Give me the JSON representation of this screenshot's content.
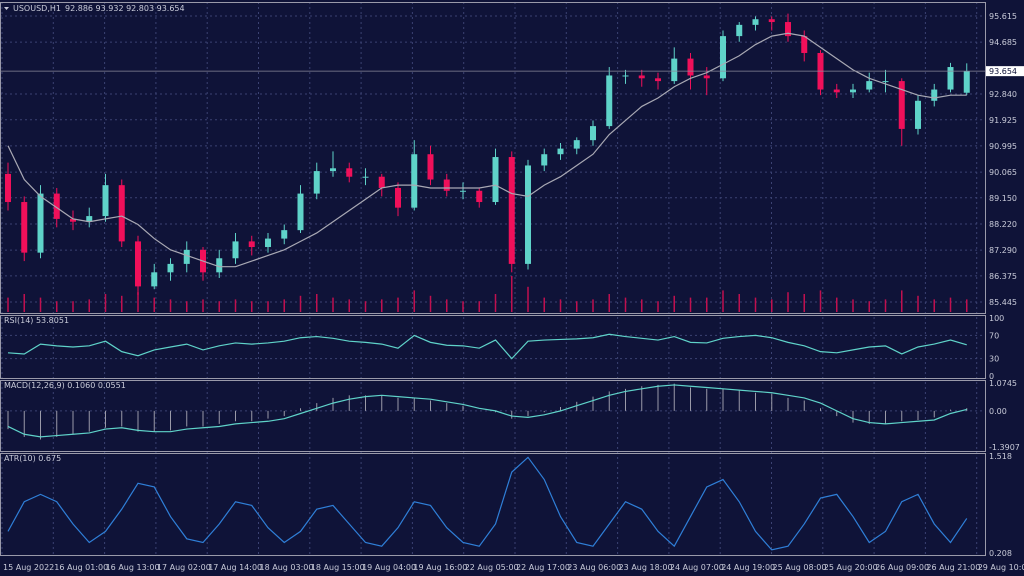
{
  "header": {
    "symbol": "USOUSD,H1",
    "ohlc": "92.886 93.932 92.803 93.654"
  },
  "colors": {
    "background": "#0f1338",
    "bull": "#5fd3c9",
    "bear": "#f0105a",
    "ma": "#a9a9b4",
    "grid": "#3b4272",
    "rsi": "#5fd3c9",
    "macd_line": "#5fd3c9",
    "macd_hist": "#9a9aa8",
    "atr": "#2f7fd8",
    "volume": "#c0104f"
  },
  "chart_data": [
    {
      "type": "candlestick",
      "title": "USOUSD,H1",
      "ylim": [
        85.2,
        96.0
      ],
      "y_ticks": [
        "95.615",
        "94.685",
        "92.840",
        "91.925",
        "90.995",
        "90.065",
        "89.150",
        "88.220",
        "87.290",
        "86.375",
        "85.445"
      ],
      "y_tick_values": [
        95.615,
        94.685,
        92.84,
        91.925,
        90.995,
        90.065,
        89.15,
        88.22,
        87.29,
        86.375,
        85.445
      ],
      "last_price": "93.654",
      "candles": [
        [
          90.0,
          90.4,
          88.7,
          89.0
        ],
        [
          89.0,
          89.2,
          86.9,
          87.2
        ],
        [
          87.2,
          89.6,
          87.0,
          89.3
        ],
        [
          89.3,
          89.5,
          88.1,
          88.4
        ],
        [
          88.4,
          88.7,
          88.0,
          88.3
        ],
        [
          88.3,
          88.8,
          88.1,
          88.5
        ],
        [
          88.5,
          90.0,
          88.3,
          89.6
        ],
        [
          89.6,
          89.8,
          87.4,
          87.6
        ],
        [
          87.6,
          87.8,
          85.7,
          86.0
        ],
        [
          86.0,
          86.8,
          85.9,
          86.5
        ],
        [
          86.5,
          87.0,
          86.2,
          86.8
        ],
        [
          86.8,
          87.6,
          86.5,
          87.3
        ],
        [
          87.3,
          87.4,
          86.2,
          86.5
        ],
        [
          86.5,
          87.3,
          86.3,
          87.0
        ],
        [
          87.0,
          87.9,
          86.8,
          87.6
        ],
        [
          87.6,
          87.8,
          87.1,
          87.4
        ],
        [
          87.4,
          87.9,
          87.2,
          87.7
        ],
        [
          87.7,
          88.2,
          87.5,
          88.0
        ],
        [
          88.0,
          89.6,
          87.9,
          89.3
        ],
        [
          89.3,
          90.4,
          89.1,
          90.1
        ],
        [
          90.1,
          90.8,
          89.9,
          90.2
        ],
        [
          90.2,
          90.4,
          89.7,
          89.9
        ],
        [
          89.9,
          90.2,
          89.6,
          89.9
        ],
        [
          89.9,
          90.0,
          89.2,
          89.5
        ],
        [
          89.5,
          89.7,
          88.5,
          88.8
        ],
        [
          88.8,
          91.2,
          88.7,
          90.7
        ],
        [
          90.7,
          91.0,
          89.6,
          89.8
        ],
        [
          89.8,
          90.0,
          89.2,
          89.4
        ],
        [
          89.4,
          89.7,
          89.1,
          89.4
        ],
        [
          89.4,
          89.5,
          88.8,
          89.0
        ],
        [
          89.0,
          90.9,
          88.9,
          90.6
        ],
        [
          90.6,
          90.8,
          86.5,
          86.8
        ],
        [
          86.8,
          90.5,
          86.6,
          90.3
        ],
        [
          90.3,
          90.9,
          90.1,
          90.7
        ],
        [
          90.7,
          91.1,
          90.5,
          90.9
        ],
        [
          90.9,
          91.3,
          90.7,
          91.2
        ],
        [
          91.2,
          91.9,
          91.0,
          91.7
        ],
        [
          91.7,
          93.8,
          91.6,
          93.5
        ],
        [
          93.5,
          93.7,
          93.2,
          93.5
        ],
        [
          93.5,
          93.7,
          93.1,
          93.4
        ],
        [
          93.4,
          93.6,
          93.0,
          93.3
        ],
        [
          93.3,
          94.5,
          93.2,
          94.1
        ],
        [
          94.1,
          94.3,
          93.0,
          93.5
        ],
        [
          93.5,
          93.8,
          92.8,
          93.4
        ],
        [
          93.4,
          95.1,
          93.3,
          94.9
        ],
        [
          94.9,
          95.4,
          94.7,
          95.3
        ],
        [
          95.3,
          95.6,
          95.1,
          95.5
        ],
        [
          95.5,
          95.6,
          95.1,
          95.4
        ],
        [
          95.4,
          95.7,
          94.7,
          94.9
        ],
        [
          94.9,
          95.1,
          94.0,
          94.3
        ],
        [
          94.3,
          94.4,
          92.8,
          93.0
        ],
        [
          93.0,
          93.2,
          92.7,
          92.9
        ],
        [
          92.9,
          93.2,
          92.7,
          93.0
        ],
        [
          93.0,
          93.6,
          92.9,
          93.3
        ],
        [
          93.3,
          93.7,
          92.9,
          93.3
        ],
        [
          93.3,
          93.4,
          91.0,
          91.6
        ],
        [
          91.6,
          92.8,
          91.4,
          92.6
        ],
        [
          92.6,
          93.2,
          92.4,
          93.0
        ],
        [
          93.0,
          93.95,
          92.9,
          93.8
        ],
        [
          92.886,
          93.932,
          92.803,
          93.654
        ]
      ],
      "moving_average": [
        91.0,
        89.8,
        89.2,
        88.8,
        88.4,
        88.3,
        88.4,
        88.5,
        88.2,
        87.7,
        87.3,
        87.1,
        86.9,
        86.7,
        86.7,
        86.9,
        87.1,
        87.3,
        87.6,
        87.9,
        88.3,
        88.7,
        89.1,
        89.5,
        89.6,
        89.6,
        89.5,
        89.5,
        89.5,
        89.5,
        89.6,
        89.3,
        89.2,
        89.6,
        89.9,
        90.3,
        90.7,
        91.4,
        91.9,
        92.4,
        92.7,
        93.1,
        93.4,
        93.6,
        93.9,
        94.2,
        94.6,
        94.9,
        95.0,
        94.9,
        94.5,
        94.1,
        93.7,
        93.4,
        93.2,
        93.0,
        92.8,
        92.7,
        92.8,
        92.8
      ],
      "volume_relative": [
        0.4,
        0.5,
        0.4,
        0.3,
        0.3,
        0.35,
        0.5,
        0.45,
        0.55,
        0.4,
        0.35,
        0.3,
        0.35,
        0.3,
        0.35,
        0.3,
        0.3,
        0.35,
        0.45,
        0.5,
        0.4,
        0.35,
        0.3,
        0.35,
        0.4,
        0.6,
        0.45,
        0.35,
        0.3,
        0.3,
        0.5,
        1.0,
        0.7,
        0.4,
        0.35,
        0.3,
        0.35,
        0.5,
        0.4,
        0.35,
        0.3,
        0.45,
        0.4,
        0.4,
        0.6,
        0.5,
        0.4,
        0.35,
        0.55,
        0.5,
        0.6,
        0.4,
        0.35,
        0.3,
        0.35,
        0.6,
        0.45,
        0.35,
        0.4,
        0.35
      ]
    },
    {
      "type": "line",
      "title": "RSI(14) 53.8051",
      "ylim": [
        0,
        100
      ],
      "y_ticks": [
        "100",
        "70",
        "30",
        "0"
      ],
      "y_tick_values": [
        100,
        70,
        30,
        0
      ],
      "values": [
        40,
        38,
        55,
        52,
        50,
        52,
        60,
        42,
        35,
        45,
        50,
        55,
        45,
        52,
        57,
        55,
        57,
        60,
        66,
        68,
        65,
        60,
        58,
        55,
        48,
        70,
        58,
        53,
        52,
        48,
        62,
        30,
        60,
        62,
        63,
        64,
        66,
        72,
        68,
        65,
        62,
        68,
        58,
        57,
        65,
        68,
        70,
        66,
        58,
        52,
        42,
        40,
        45,
        50,
        52,
        38,
        50,
        55,
        62,
        53.8
      ]
    },
    {
      "type": "bar+line",
      "title": "MACD(12,26,9) 0.1060 0.0551",
      "ylim": [
        -1.3907,
        1.0745
      ],
      "y_ticks": [
        "1.0745",
        "0.00",
        "-1.3907"
      ],
      "y_tick_values": [
        1.0745,
        0,
        -1.3907
      ],
      "histogram": [
        -0.7,
        -1.0,
        -1.1,
        -1.0,
        -0.9,
        -0.8,
        -0.65,
        -0.6,
        -0.8,
        -0.8,
        -0.75,
        -0.6,
        -0.6,
        -0.5,
        -0.4,
        -0.4,
        -0.3,
        -0.2,
        0.1,
        0.3,
        0.5,
        0.6,
        0.6,
        0.6,
        0.5,
        0.5,
        0.4,
        0.3,
        0.2,
        0.0,
        -0.05,
        -0.3,
        -0.2,
        -0.05,
        0.15,
        0.35,
        0.55,
        0.75,
        0.85,
        0.95,
        1.0,
        1.05,
        0.9,
        0.85,
        0.85,
        0.8,
        0.7,
        0.65,
        0.5,
        0.4,
        0.1,
        -0.2,
        -0.45,
        -0.5,
        -0.5,
        -0.4,
        -0.35,
        -0.25,
        0.05,
        0.106
      ],
      "signal": [
        -0.6,
        -0.9,
        -1.0,
        -0.95,
        -0.9,
        -0.85,
        -0.7,
        -0.65,
        -0.75,
        -0.8,
        -0.8,
        -0.7,
        -0.65,
        -0.6,
        -0.5,
        -0.45,
        -0.4,
        -0.3,
        -0.1,
        0.1,
        0.3,
        0.45,
        0.55,
        0.6,
        0.55,
        0.5,
        0.45,
        0.35,
        0.25,
        0.1,
        0.0,
        -0.2,
        -0.25,
        -0.15,
        0.0,
        0.2,
        0.4,
        0.6,
        0.75,
        0.85,
        0.95,
        1.0,
        0.95,
        0.9,
        0.85,
        0.8,
        0.75,
        0.7,
        0.6,
        0.5,
        0.3,
        0.0,
        -0.3,
        -0.45,
        -0.5,
        -0.45,
        -0.4,
        -0.35,
        -0.1,
        0.055
      ]
    },
    {
      "type": "line",
      "title": "ATR(10) 0.675",
      "ylim": [
        0.208,
        1.518
      ],
      "y_ticks": [
        "1.518",
        "0.208"
      ],
      "y_tick_values": [
        1.518,
        0.208
      ],
      "values": [
        0.5,
        0.9,
        1.0,
        0.9,
        0.6,
        0.35,
        0.5,
        0.8,
        1.15,
        1.1,
        0.7,
        0.4,
        0.35,
        0.6,
        0.9,
        0.85,
        0.55,
        0.35,
        0.5,
        0.8,
        0.85,
        0.6,
        0.35,
        0.3,
        0.55,
        0.9,
        0.85,
        0.55,
        0.35,
        0.3,
        0.6,
        1.3,
        1.5,
        1.2,
        0.7,
        0.35,
        0.3,
        0.6,
        0.9,
        0.8,
        0.5,
        0.3,
        0.7,
        1.1,
        1.2,
        0.9,
        0.5,
        0.25,
        0.3,
        0.6,
        0.95,
        1.0,
        0.7,
        0.35,
        0.5,
        0.9,
        1.0,
        0.6,
        0.35,
        0.675
      ]
    }
  ],
  "x_ticks": [
    "15 Aug 2022",
    "16 Aug 01:00",
    "16 Aug 13:00",
    "17 Aug 02:00",
    "17 Aug 14:00",
    "18 Aug 03:00",
    "18 Aug 15:00",
    "19 Aug 04:00",
    "19 Aug 16:00",
    "22 Aug 05:00",
    "22 Aug 17:00",
    "23 Aug 06:00",
    "23 Aug 18:00",
    "24 Aug 07:00",
    "24 Aug 19:00",
    "25 Aug 08:00",
    "25 Aug 20:00",
    "26 Aug 09:00",
    "26 Aug 21:00",
    "29 Aug 10:00"
  ]
}
